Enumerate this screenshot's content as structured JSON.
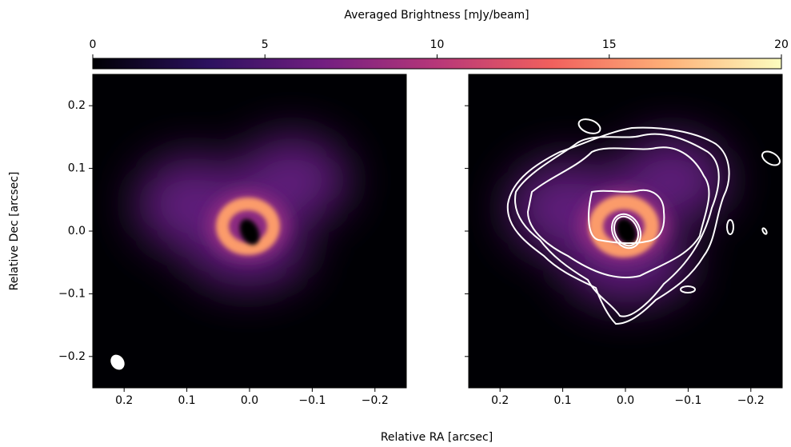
{
  "chart_data": {
    "type": "image",
    "colorbar_label": "Averaged Brightness [mJy/beam]",
    "clim": [
      0,
      20
    ],
    "cticks": [
      0,
      5,
      10,
      15,
      20
    ],
    "colormap": [
      "#000004",
      "#2c115f",
      "#721f81",
      "#b73779",
      "#f1605d",
      "#feb078",
      "#fcfdbf"
    ],
    "xlabel": "Relative RA [arcsec]",
    "ylabel": "Relative Dec [arcsec]",
    "xlim": [
      0.25,
      -0.25
    ],
    "ylim": [
      -0.25,
      0.25
    ],
    "xticks": [
      0.2,
      0.1,
      {
        "value": 0,
        "label": "0.0"
      },
      {
        "value": -0.1,
        "label": "−0.1"
      },
      {
        "value": -0.2,
        "label": "−0.2"
      }
    ],
    "yticks": [
      {
        "value": -0.2,
        "label": "−0.2"
      },
      {
        "value": -0.1,
        "label": "−0.1"
      },
      {
        "value": 0,
        "label": "0.0"
      },
      0.1,
      0.2
    ]
  }
}
